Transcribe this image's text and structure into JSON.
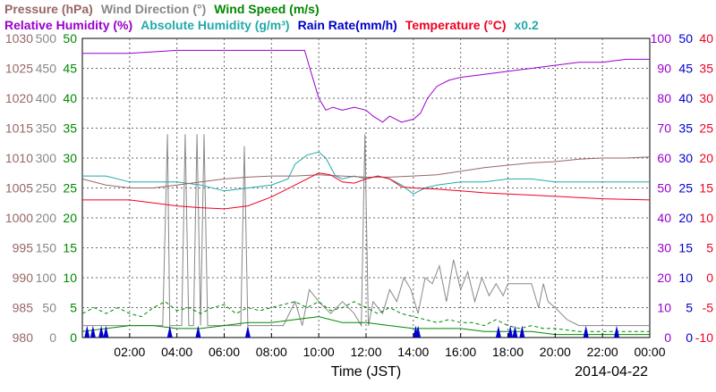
{
  "header": {
    "row1": [
      {
        "key": "pressure",
        "label": "Pressure (hPa)",
        "color": "#996666"
      },
      {
        "key": "wind_direction",
        "label": "Wind Direction (°)",
        "color": "#888888"
      },
      {
        "key": "wind_speed",
        "label": "Wind Speed (m/s)",
        "color": "#008800"
      }
    ],
    "row2": [
      {
        "key": "relative_humidity",
        "label": "Relative Humidity (%)",
        "color": "#9900cc"
      },
      {
        "key": "absolute_humidity",
        "label": "Absolute Humidity (g/m³)",
        "color": "#22aaaa"
      },
      {
        "key": "rain_rate",
        "label": "Rain Rate(mm/h)",
        "color": "#0000cc"
      },
      {
        "key": "temperature",
        "label": "Temperature (°C)",
        "color": "#ee0022"
      },
      {
        "key": "scale_note",
        "label": "x0.2",
        "color": "#22aaaa"
      }
    ]
  },
  "chart_data": {
    "type": "line",
    "xlabel": "Time (JST)",
    "date": "2014-04-22",
    "xlim": [
      0,
      24
    ],
    "x_ticks": [
      "02:00",
      "04:00",
      "06:00",
      "08:00",
      "10:00",
      "12:00",
      "14:00",
      "16:00",
      "18:00",
      "20:00",
      "22:00",
      "00:00"
    ],
    "grid": true,
    "axes": {
      "pressure": {
        "side": "left",
        "color": "#996666",
        "ylim": [
          980,
          1030
        ],
        "ticks": [
          "980",
          "985",
          "990",
          "995",
          "1000",
          "1005",
          "1010",
          "1015",
          "1020",
          "1025",
          "1030"
        ]
      },
      "wind_direction": {
        "side": "left",
        "color": "#888888",
        "ylim": [
          0,
          500
        ],
        "ticks": [
          "0",
          "50",
          "100",
          "150",
          "200",
          "250",
          "300",
          "350",
          "400",
          "450",
          "500"
        ]
      },
      "wind_speed": {
        "side": "left",
        "color": "#008800",
        "ylim": [
          0,
          50
        ],
        "ticks": [
          "0",
          "5",
          "10",
          "15",
          "20",
          "25",
          "30",
          "35",
          "40",
          "45",
          "50"
        ]
      },
      "relative_humidity": {
        "side": "right",
        "color": "#9900cc",
        "ylim": [
          0,
          100
        ],
        "ticks": [
          "0",
          "10",
          "20",
          "30",
          "40",
          "50",
          "60",
          "70",
          "80",
          "90",
          "100"
        ]
      },
      "rain_rate": {
        "side": "right",
        "color": "#0000cc",
        "ylim": [
          0,
          50
        ],
        "ticks": [
          "0",
          "5",
          "10",
          "15",
          "20",
          "25",
          "30",
          "35",
          "40",
          "45",
          "50"
        ]
      },
      "temperature": {
        "side": "right",
        "color": "#ee0022",
        "ylim": [
          -10,
          40
        ],
        "ticks": [
          "-10",
          "-5",
          "0",
          "5",
          "10",
          "15",
          "20",
          "25",
          "30",
          "35",
          "40"
        ]
      }
    },
    "series": [
      {
        "name": "Relative Humidity (%)",
        "axis": "relative_humidity",
        "color": "#9900cc",
        "x": [
          0,
          2,
          4,
          6,
          8,
          9.4,
          9.7,
          10,
          10.3,
          10.6,
          11,
          11.5,
          12,
          12.3,
          12.7,
          13,
          13.5,
          14,
          14.3,
          14.6,
          15,
          15.5,
          16,
          17,
          18,
          19,
          20,
          21,
          22,
          23,
          24
        ],
        "y": [
          95,
          95,
          96,
          96,
          96,
          96,
          88,
          80,
          76,
          77,
          76,
          77,
          76,
          74,
          72,
          74,
          72,
          73,
          75,
          80,
          84,
          86,
          87,
          88,
          89,
          90,
          91,
          92,
          92,
          93,
          93
        ]
      },
      {
        "name": "Absolute Humidity (g/m³) x0.2",
        "axis": "relative_humidity",
        "color": "#22aaaa",
        "x": [
          0,
          1,
          2,
          3,
          4,
          5,
          6,
          7,
          8,
          8.7,
          9,
          9.5,
          10,
          10.3,
          10.7,
          11,
          11.5,
          12,
          12.5,
          13,
          13.5,
          14,
          14.5,
          15,
          16,
          17,
          18,
          19,
          20,
          21,
          22,
          23,
          24
        ],
        "y": [
          54,
          54,
          52,
          52,
          52,
          51,
          49,
          50,
          51,
          53,
          58,
          61,
          62,
          60,
          54,
          53,
          54,
          53,
          54,
          53,
          51,
          48,
          50,
          51,
          52,
          52,
          53,
          53,
          52,
          52,
          52,
          52,
          52
        ]
      },
      {
        "name": "Pressure (hPa)",
        "axis": "pressure",
        "color": "#996666",
        "x": [
          0,
          1,
          2,
          3,
          4,
          5,
          6,
          7,
          8,
          9,
          10,
          11,
          12,
          13,
          14,
          15,
          16,
          17,
          18,
          19,
          20,
          21,
          22,
          23,
          24
        ],
        "y": [
          1006.5,
          1005.5,
          1005,
          1005,
          1005.5,
          1006,
          1006.5,
          1006.8,
          1007,
          1007,
          1007.2,
          1007,
          1006.8,
          1006.8,
          1007,
          1007.2,
          1007.8,
          1008.4,
          1008.8,
          1009.2,
          1009.4,
          1009.8,
          1010,
          1010,
          1010.2
        ]
      },
      {
        "name": "Temperature (°C)",
        "axis": "temperature",
        "color": "#ee0022",
        "x": [
          0,
          1,
          2,
          3,
          4,
          5,
          6,
          7,
          8,
          9,
          10,
          10.5,
          11,
          11.5,
          12,
          12.5,
          13,
          13.5,
          14,
          15,
          16,
          17,
          18,
          19,
          20,
          21,
          22,
          23,
          24
        ],
        "y": [
          13,
          13,
          13,
          12.5,
          12,
          11.7,
          11.5,
          12,
          13.5,
          15.5,
          17.5,
          17.2,
          16,
          15.8,
          16.5,
          17,
          16.5,
          15.2,
          15,
          14.8,
          14.5,
          14.2,
          14,
          13.8,
          13.6,
          13.4,
          13.2,
          13.1,
          13
        ]
      },
      {
        "name": "Wind Speed (m/s)",
        "axis": "wind_speed",
        "color": "#008800",
        "x": [
          0,
          1,
          2,
          3,
          4,
          5,
          6,
          7,
          8,
          9,
          10,
          11,
          12,
          13,
          14,
          15,
          16,
          17,
          18,
          19,
          20,
          21,
          22,
          23,
          24
        ],
        "y": [
          1,
          1.5,
          2,
          2,
          1.5,
          1.5,
          2,
          2.5,
          2.5,
          3,
          3.5,
          2.5,
          2.5,
          2,
          1.5,
          1.5,
          1.5,
          1,
          1,
          1,
          0.5,
          0.5,
          0.5,
          0.5,
          0.5
        ]
      },
      {
        "name": "Wind Speed gust (m/s)",
        "axis": "wind_speed",
        "color": "#008800",
        "dashed": true,
        "x": [
          0,
          0.5,
          1,
          1.5,
          2,
          2.5,
          3,
          3.5,
          4,
          4.5,
          5,
          5.5,
          6,
          6.5,
          7,
          7.5,
          8,
          8.5,
          9,
          9.5,
          10,
          10.5,
          11,
          11.5,
          12,
          12.5,
          13,
          13.5,
          14,
          14.5,
          15,
          15.5,
          16,
          16.5,
          17,
          17.5,
          18,
          18.5,
          19,
          19.5,
          20,
          21,
          22,
          23,
          24
        ],
        "y": [
          4,
          5,
          4,
          5,
          4,
          3.5,
          5,
          6,
          4.5,
          5,
          4,
          5,
          5.5,
          4,
          5,
          4.5,
          5,
          5.5,
          6,
          5,
          6,
          4.5,
          5,
          6,
          5,
          4,
          5,
          4,
          3.5,
          3,
          2.5,
          3,
          2.5,
          2.5,
          2,
          3,
          2,
          1.5,
          2,
          1.5,
          1.5,
          1,
          1,
          1,
          1
        ]
      },
      {
        "name": "Wind Direction (°)",
        "axis": "wind_direction",
        "color": "#888888",
        "x": [
          0,
          1,
          2,
          3,
          3.4,
          3.6,
          3.7,
          3.8,
          4,
          4.2,
          4.35,
          4.5,
          4.7,
          4.85,
          5,
          5.15,
          5.3,
          5.45,
          6,
          6.7,
          6.85,
          7,
          7.2,
          8,
          8.5,
          9,
          9.3,
          9.6,
          10,
          10.5,
          11,
          11.5,
          11.8,
          11.95,
          12.1,
          12.3,
          12.7,
          13,
          13.3,
          13.6,
          13.9,
          14.2,
          14.5,
          14.8,
          15.1,
          15.4,
          15.7,
          16,
          16.3,
          16.6,
          16.9,
          17.2,
          17.5,
          17.8,
          18,
          18.5,
          19,
          19.3,
          19.5,
          19.7,
          20,
          20.5,
          21,
          22,
          23,
          24
        ],
        "y": [
          20,
          20,
          20,
          20,
          20,
          340,
          20,
          20,
          20,
          20,
          340,
          20,
          20,
          340,
          20,
          340,
          20,
          20,
          20,
          20,
          320,
          20,
          20,
          20,
          20,
          60,
          20,
          80,
          60,
          40,
          60,
          40,
          20,
          340,
          20,
          60,
          40,
          80,
          60,
          100,
          80,
          40,
          100,
          90,
          120,
          60,
          130,
          80,
          110,
          60,
          100,
          70,
          90,
          70,
          90,
          90,
          90,
          50,
          90,
          60,
          50,
          30,
          20,
          20,
          20,
          20
        ]
      }
    ],
    "rain_events": [
      0.2,
      0.45,
      0.8,
      1.0,
      3.7,
      4.9,
      7.0,
      14.1,
      14.2,
      17.6,
      18.1,
      18.3,
      18.6,
      21.3,
      22.6
    ],
    "rain_peak_mm_h": 2
  }
}
